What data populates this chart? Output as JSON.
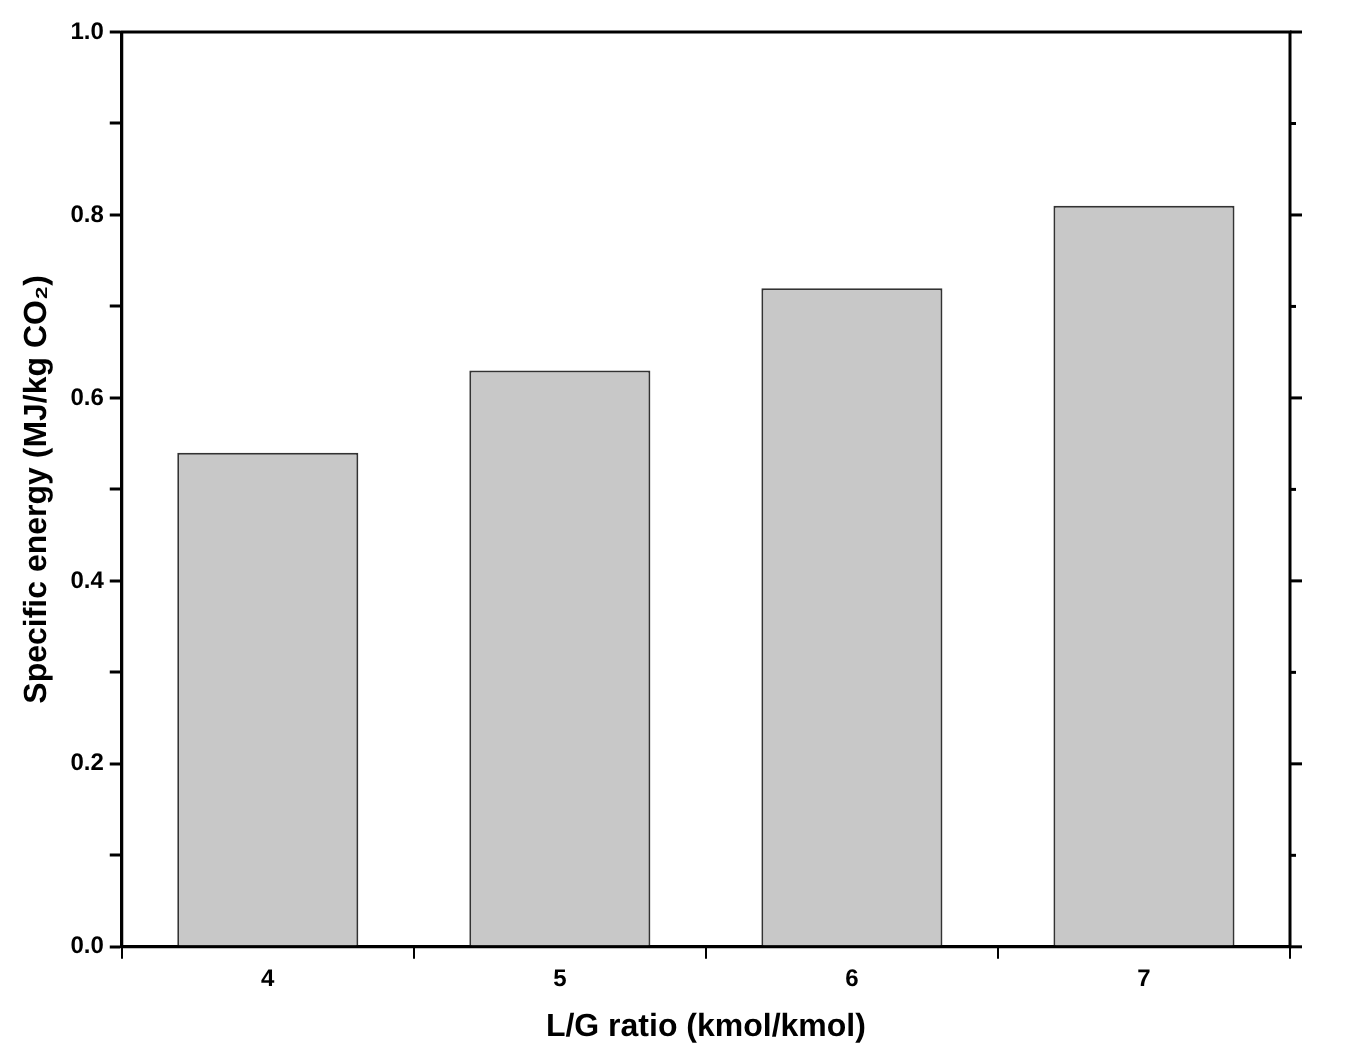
{
  "chart_data": {
    "type": "bar",
    "xlabel": "L/G ratio (kmol/kmol)",
    "ylabel": "Specific energy (MJ/kg CO₂)",
    "categories": [
      "4",
      "5",
      "6",
      "7"
    ],
    "values": [
      0.54,
      0.63,
      0.72,
      0.81
    ],
    "color": "#c8c8c8",
    "ylim": [
      0,
      1
    ],
    "yticks": [
      {
        "value": 0,
        "label": "0.0"
      },
      {
        "value": 0.1,
        "label": null
      },
      0.2,
      {
        "value": 0.3,
        "label": null
      },
      0.4,
      {
        "value": 0.5,
        "label": null
      },
      0.6,
      {
        "value": 0.7,
        "label": null
      },
      0.8,
      {
        "value": 0.9,
        "label": null
      },
      {
        "value": 1,
        "label": "1.0"
      }
    ],
    "grid": false,
    "legend": false
  }
}
